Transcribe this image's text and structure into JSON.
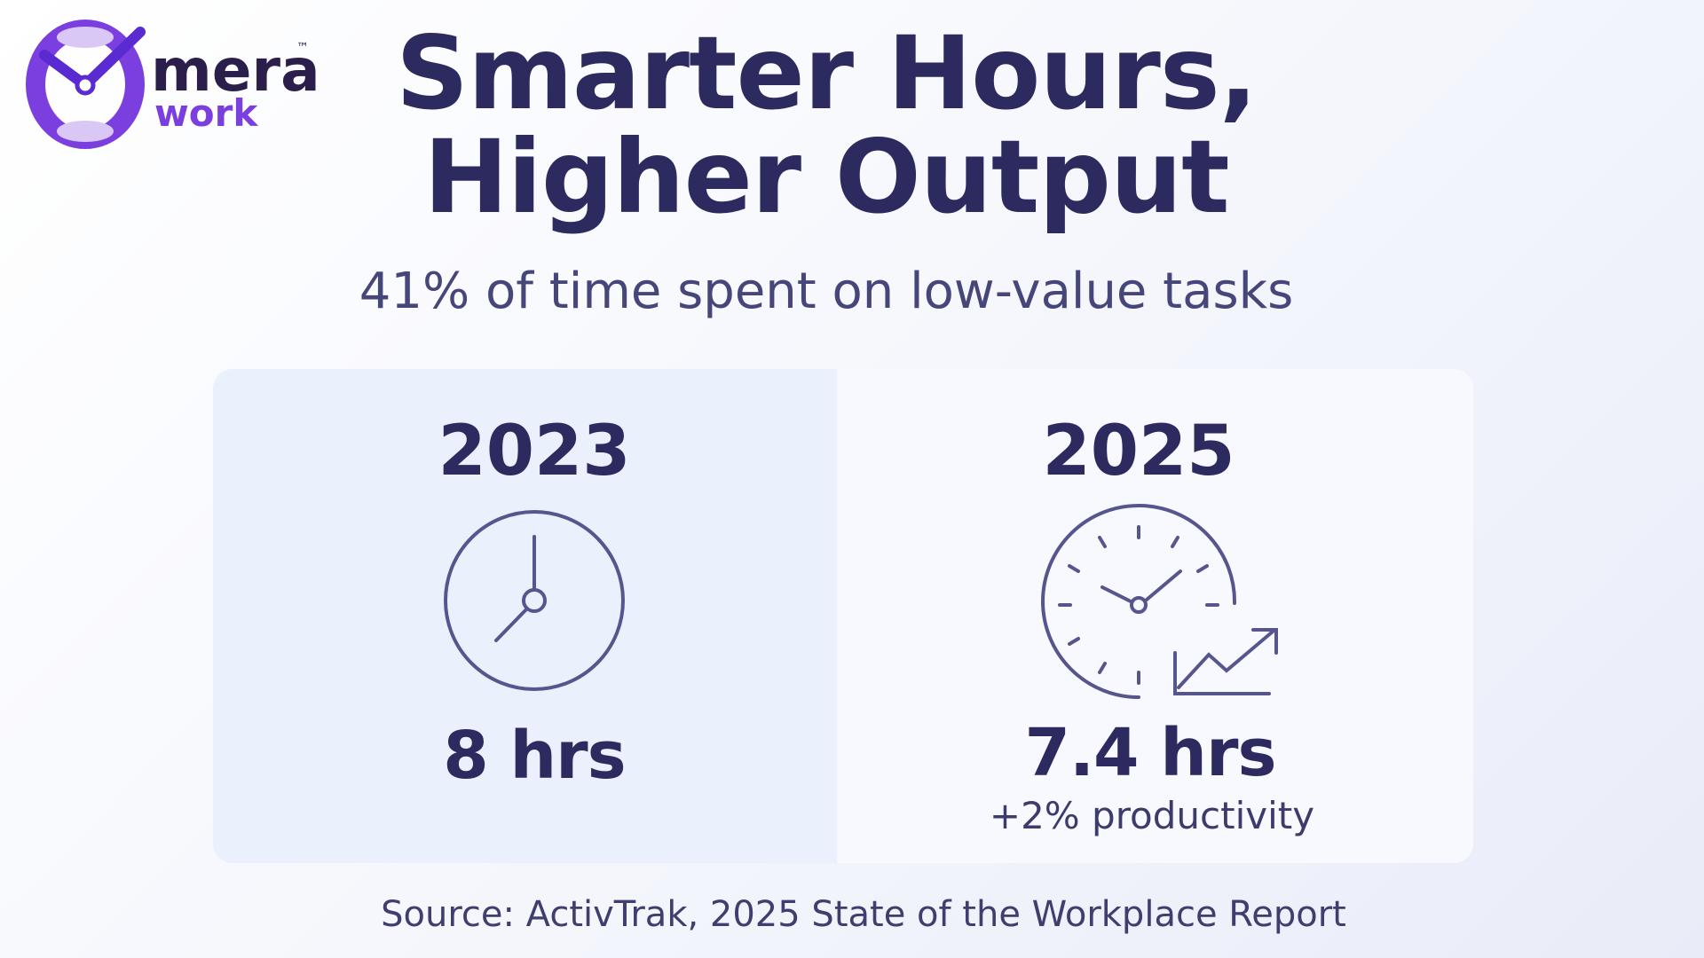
{
  "logo": {
    "name": "mera",
    "sub": "work",
    "tm": "™"
  },
  "title": {
    "line1": "Smarter Hours,",
    "line2": "Higher Output"
  },
  "subtitle": "41% of time spent on low-value tasks",
  "cards": [
    {
      "year": "2023",
      "value": "8 hrs"
    },
    {
      "year": "2025",
      "value": "7.4 hrs",
      "note": "+2% productivity"
    }
  ],
  "source": "Source: ActivTrak, 2025 State of the Workplace Report"
}
